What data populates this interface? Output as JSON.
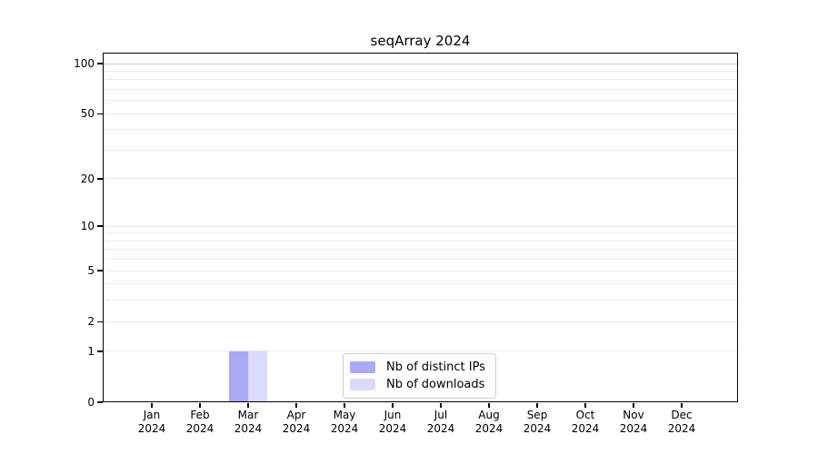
{
  "chart_data": {
    "type": "bar",
    "title": "seqArray 2024",
    "categories": [
      {
        "label": "Jan",
        "sublabel": "2024"
      },
      {
        "label": "Feb",
        "sublabel": "2024"
      },
      {
        "label": "Mar",
        "sublabel": "2024"
      },
      {
        "label": "Apr",
        "sublabel": "2024"
      },
      {
        "label": "May",
        "sublabel": "2024"
      },
      {
        "label": "Jun",
        "sublabel": "2024"
      },
      {
        "label": "Jul",
        "sublabel": "2024"
      },
      {
        "label": "Aug",
        "sublabel": "2024"
      },
      {
        "label": "Sep",
        "sublabel": "2024"
      },
      {
        "label": "Oct",
        "sublabel": "2024"
      },
      {
        "label": "Nov",
        "sublabel": "2024"
      },
      {
        "label": "Dec",
        "sublabel": "2024"
      }
    ],
    "series": [
      {
        "name": "Nb of distinct IPs",
        "color": "#a9a9f6",
        "values": [
          0,
          0,
          1,
          0,
          0,
          0,
          0,
          0,
          0,
          0,
          0,
          0
        ]
      },
      {
        "name": "Nb of downloads",
        "color": "#dbdafa",
        "values": [
          0,
          0,
          1,
          0,
          0,
          0,
          0,
          0,
          0,
          0,
          0,
          0
        ]
      }
    ],
    "yscale": "log1p",
    "ylim": [
      0,
      116
    ],
    "y_ticks": [
      0,
      1,
      2,
      5,
      10,
      20,
      50,
      100
    ],
    "grid": {
      "minor_values": [
        1,
        2,
        3,
        4,
        5,
        6,
        7,
        8,
        9,
        10,
        20,
        30,
        40,
        50,
        60,
        70,
        80,
        90
      ],
      "emphasis_values": [
        100
      ],
      "minor_color": "#eaeaea",
      "emphasis_color": "#c8c8c8"
    },
    "legend": {
      "entries": [
        "Nb of distinct IPs",
        "Nb of downloads"
      ],
      "position": "bottom-center-inside"
    }
  }
}
